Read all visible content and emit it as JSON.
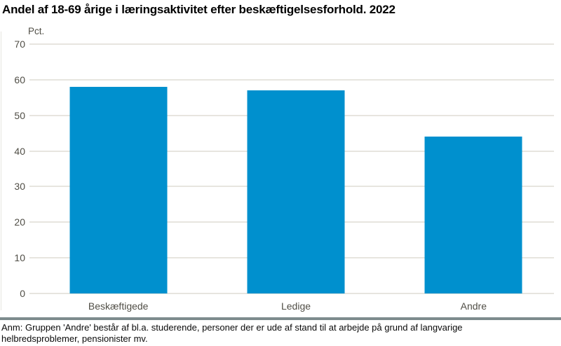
{
  "page": {
    "title": "Andel af 18-69 årige i læringsaktivitet efter beskæftigelsesforhold. 2022"
  },
  "chart_data": {
    "type": "bar",
    "title": "Andel af 18-69 årige i læringsaktivitet efter beskæftigelsesforhold. 2022",
    "unit_label": "Pct.",
    "categories": [
      "Beskæftigede",
      "Ledige",
      "Andre"
    ],
    "values": [
      58,
      57,
      44
    ],
    "xlabel": "",
    "ylabel": "Pct.",
    "ylim": [
      0,
      70
    ],
    "yticks": [
      0,
      10,
      20,
      30,
      40,
      50,
      60,
      70
    ],
    "grid": true,
    "legend": "none",
    "bar_color": "#0090CE"
  },
  "footnote": {
    "lines": [
      "Anm: Gruppen 'Andre' består af bl.a. studerende, personer der er ude af stand til at arbejde på grund af langvarige",
      "helbredsproblemer, pensionister mv."
    ]
  },
  "colors": {
    "bar": "#0090CE",
    "gridline": "#E7E5DF",
    "axis_text": "#504E46",
    "divider": "#7D8B8D",
    "title_text": "#000000",
    "background": "#FFFFFF"
  }
}
